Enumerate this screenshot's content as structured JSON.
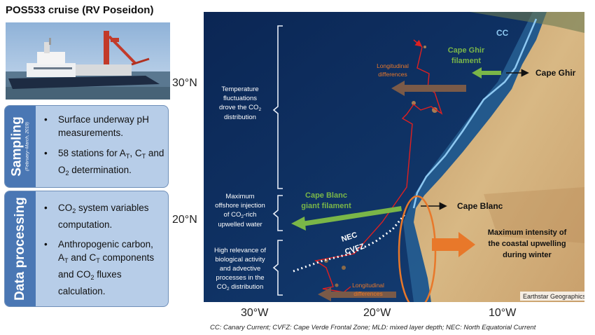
{
  "title": "POS533 cruise (RV Poseidon)",
  "panels": {
    "sampling": {
      "label": "Sampling",
      "dates": "(February–March, 2019)",
      "bullets": [
        {
          "text": "Surface underway pH measurements."
        },
        {
          "text": "58 stations for A",
          "sub1": "T",
          "mid": ", C",
          "sub2": "T",
          "mid2": " and O",
          "sub3": "2",
          "end": " determination."
        }
      ]
    },
    "processing": {
      "label": "Data processing",
      "bullets": [
        {
          "pre": "CO",
          "sub1": "2",
          "text": " system variables computation."
        },
        {
          "text": "Anthropogenic carbon, A",
          "sub1": "T",
          "mid": " and C",
          "sub2": "T",
          "mid2": " components and CO",
          "sub3": "2",
          "end": " fluxes calculation."
        }
      ]
    }
  },
  "map": {
    "lat_labels": [
      "30°N",
      "20°N"
    ],
    "lon_labels": [
      "30°W",
      "20°W",
      "10°W"
    ],
    "annotations": {
      "temp_fluct_1": "Temperature",
      "temp_fluct_2": "fluctuations",
      "temp_fluct_3": "drove the CO",
      "temp_fluct_sub": "2",
      "temp_fluct_4": "distribution",
      "max_offshore_1": "Maximum",
      "max_offshore_2": "offshore injection",
      "max_offshore_3a": "of CO",
      "max_offshore_sub": "2",
      "max_offshore_3b": "-rich",
      "max_offshore_4": "upwelled water",
      "high_rel_1": "High relevance of",
      "high_rel_2": "biological activity",
      "high_rel_3": "and advective",
      "high_rel_4": "processes in the",
      "high_rel_5a": "CO",
      "high_rel_sub": "2",
      "high_rel_5b": " distribution",
      "long_diff_top_1": "Longitudinal",
      "long_diff_top_2": "differences",
      "long_diff_bottom_1": "Longitudinal",
      "long_diff_bottom_2": "differences",
      "cc": "CC",
      "cape_ghir_filament_1": "Cape Ghir",
      "cape_ghir_filament_2": "filament",
      "cape_ghir": "Cape Ghir",
      "cape_blanc_giant_1": "Cape Blanc",
      "cape_blanc_giant_2": "giant filament",
      "cape_blanc": "Cape Blanc",
      "nec": "NEC",
      "cvfz": "CVFZ",
      "max_intensity_1": "Maximum intensity of",
      "max_intensity_2": "the coastal upwelling",
      "max_intensity_3": "during winter",
      "attribution": "Earthstar Geographics"
    }
  },
  "caption": "CC: Canary Current; CVFZ: Cape Verde Frontal Zone; MLD: mixed layer depth; NEC: North Equatorial Current",
  "colors": {
    "panel_fill": "#b7cde8",
    "panel_tab": "#4a77b4",
    "ocean": "#0d2c5c",
    "cruise_track": "#e02020",
    "filament_arrow": "#7ab648",
    "brown_arrow": "#7a5a48",
    "orange": "#e8782a"
  }
}
